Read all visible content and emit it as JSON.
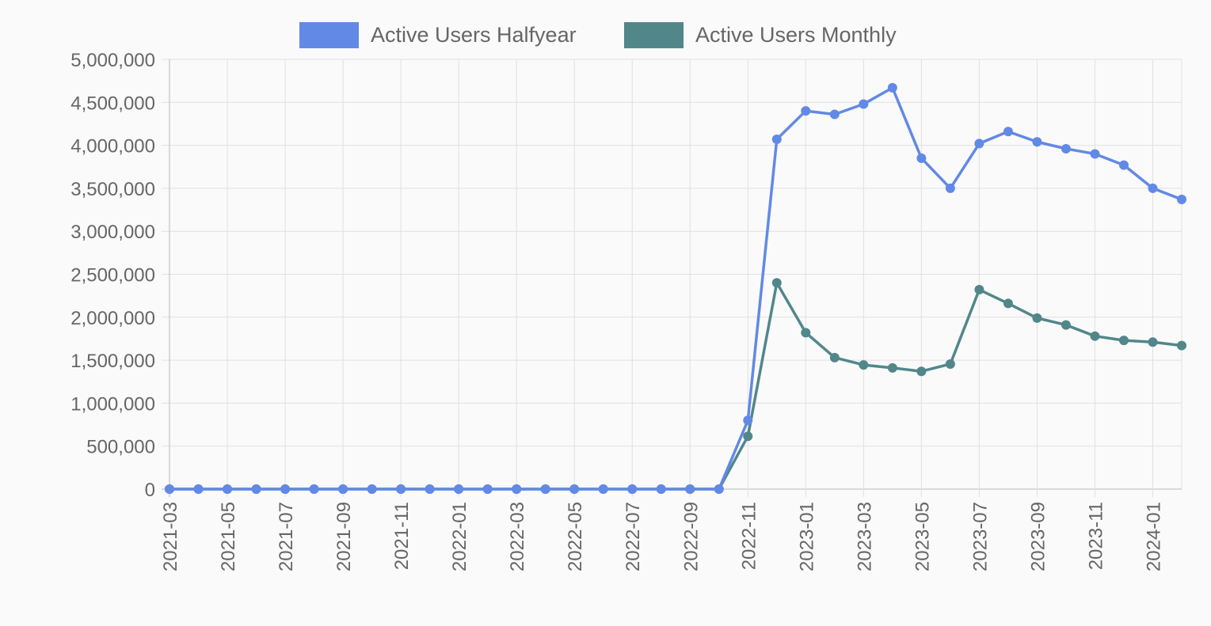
{
  "chart_data": {
    "type": "line",
    "title": "",
    "xlabel": "",
    "ylabel": "",
    "ylim": [
      0,
      5000000
    ],
    "y_ticks": [
      "0",
      "500,000",
      "1,000,000",
      "1,500,000",
      "2,000,000",
      "2,500,000",
      "3,000,000",
      "3,500,000",
      "4,000,000",
      "4,500,000",
      "5,000,000"
    ],
    "grid": true,
    "legend_position": "top-center",
    "x": [
      "2021-03",
      "2021-04",
      "2021-05",
      "2021-06",
      "2021-07",
      "2021-08",
      "2021-09",
      "2021-10",
      "2021-11",
      "2021-12",
      "2022-01",
      "2022-02",
      "2022-03",
      "2022-04",
      "2022-05",
      "2022-06",
      "2022-07",
      "2022-08",
      "2022-09",
      "2022-10",
      "2022-11",
      "2022-12",
      "2023-01",
      "2023-02",
      "2023-03",
      "2023-04",
      "2023-05",
      "2023-06",
      "2023-07",
      "2023-08",
      "2023-09",
      "2023-10",
      "2023-11",
      "2023-12",
      "2024-01",
      "2024-02"
    ],
    "x_tick_labels": [
      "2021-03",
      "2021-05",
      "2021-07",
      "2021-09",
      "2021-11",
      "2022-01",
      "2022-03",
      "2022-05",
      "2022-07",
      "2022-09",
      "2022-11",
      "2023-01",
      "2023-03",
      "2023-05",
      "2023-07",
      "2023-09",
      "2023-11",
      "2024-01"
    ],
    "series": [
      {
        "name": "Active Users Monthly",
        "color": "#52878a",
        "values": [
          0,
          0,
          0,
          0,
          0,
          0,
          0,
          0,
          0,
          0,
          0,
          0,
          0,
          0,
          0,
          0,
          0,
          0,
          0,
          0,
          615000,
          2400000,
          1820000,
          1530000,
          1445000,
          1410000,
          1370000,
          1455000,
          2320000,
          2160000,
          1990000,
          1910000,
          1780000,
          1730000,
          1710000,
          1670000
        ]
      },
      {
        "name": "Active Users Halfyear",
        "color": "#6289e6",
        "values": [
          0,
          0,
          0,
          0,
          0,
          0,
          0,
          0,
          0,
          0,
          0,
          0,
          0,
          0,
          0,
          0,
          0,
          0,
          0,
          0,
          800000,
          4070000,
          4400000,
          4360000,
          4480000,
          4670000,
          3850000,
          3500000,
          4020000,
          4160000,
          4040000,
          3960000,
          3900000,
          3770000,
          3500000,
          3370000
        ]
      }
    ],
    "legend": [
      "Active Users Halfyear",
      "Active Users Monthly"
    ]
  }
}
